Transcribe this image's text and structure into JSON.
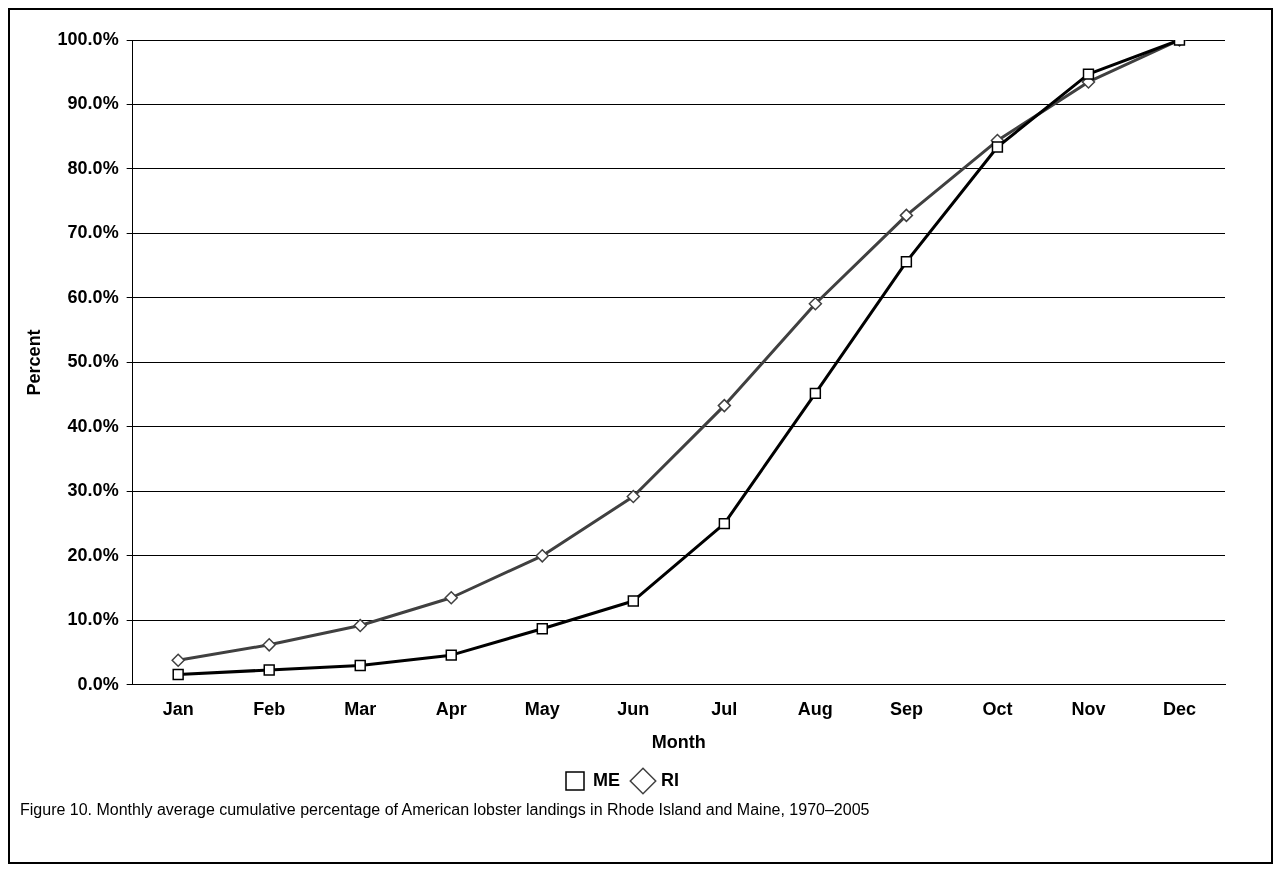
{
  "chart_data": {
    "type": "line",
    "xlabel": "Month",
    "ylabel": "Percent",
    "categories": [
      "Jan",
      "Feb",
      "Mar",
      "Apr",
      "May",
      "Jun",
      "Jul",
      "Aug",
      "Sep",
      "Oct",
      "Nov",
      "Dec"
    ],
    "series": [
      {
        "name": "RI",
        "color": "#404040",
        "marker": "diamond",
        "values": [
          3.8,
          6.2,
          9.2,
          13.5,
          20.0,
          29.2,
          43.3,
          59.1,
          72.8,
          84.4,
          93.5,
          100
        ]
      },
      {
        "name": "ME",
        "color": "#000000",
        "marker": "square",
        "values": [
          1.6,
          2.3,
          3.0,
          4.6,
          8.7,
          13.0,
          25.0,
          45.2,
          65.6,
          83.4,
          94.7,
          100
        ]
      }
    ],
    "ylim": [
      0,
      100
    ],
    "yticks": [
      {
        "value": 0,
        "label": "0.0%"
      },
      {
        "value": 10,
        "label": "10.0%"
      },
      {
        "value": 20,
        "label": "20.0%"
      },
      {
        "value": 30,
        "label": "30.0%"
      },
      {
        "value": 40,
        "label": "40.0%"
      },
      {
        "value": 50,
        "label": "50.0%"
      },
      {
        "value": 60,
        "label": "60.0%"
      },
      {
        "value": 70,
        "label": "70.0%"
      },
      {
        "value": 80,
        "label": "80.0%"
      },
      {
        "value": 90,
        "label": "90.0%"
      },
      {
        "value": 100,
        "label": "100.0%"
      }
    ],
    "grid": "y",
    "legend": "bottom",
    "line_style": "solid",
    "annotations": [
      "Figure 10.  Monthly average cumulative percentage of American lobster landings in Rhode Island and Maine, 1970–2005"
    ]
  }
}
